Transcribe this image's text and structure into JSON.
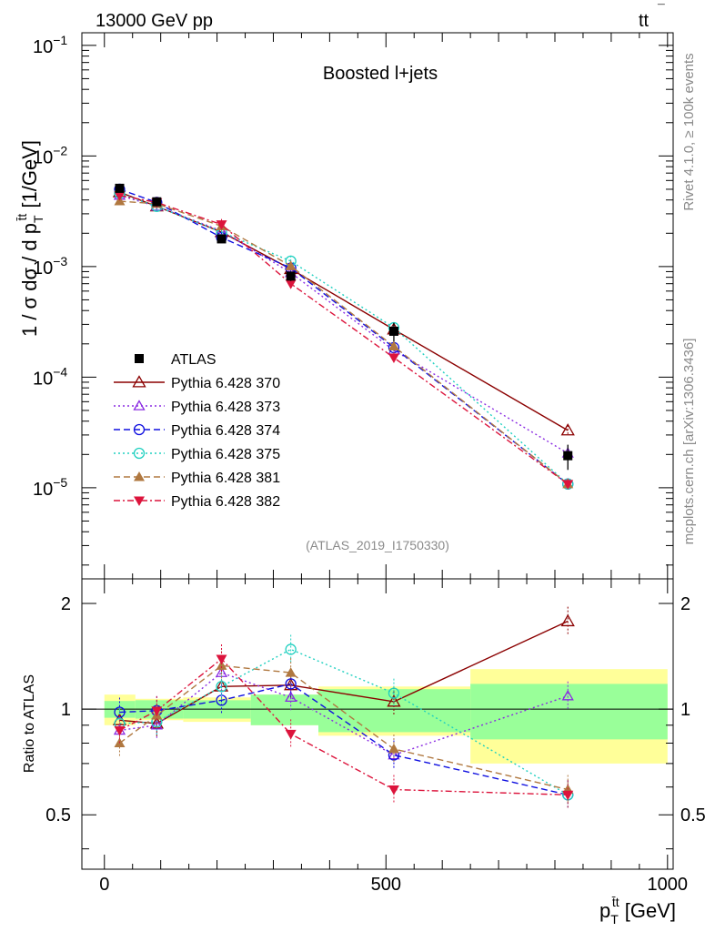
{
  "header": {
    "left": "13000 GeV pp",
    "right_main": "tt",
    "right_bar": "¯"
  },
  "main_panel": {
    "title": "Boosted l+jets",
    "ylabel_main": "1 / σ dσ / d p",
    "ylabel_sub": "T",
    "ylabel_sup": "t̄t",
    "ylabel_units": " [1/GeV]",
    "analysis_tag": "(ATLAS_2019_I1750330)",
    "ytick_base": "10",
    "ytick_exps": [
      "−1",
      "−2",
      "−3",
      "−4",
      "−5"
    ]
  },
  "ratio_panel": {
    "ylabel": "Ratio to ATLAS",
    "ytick_labels": [
      "2",
      "1",
      "0.5"
    ],
    "ytick_labels_right": [
      "2",
      "1",
      "0.5"
    ]
  },
  "xaxis": {
    "label_main": "p",
    "label_sub": "T",
    "label_sup": "t̄t",
    "label_units": " [GeV]",
    "tick_labels": [
      "0",
      "500",
      "1000"
    ]
  },
  "side_text": {
    "rivet": "Rivet 4.1.0, ≥ 100k events",
    "mcplots": "mcplots.cern.ch [arXiv:1306.3436]"
  },
  "colors": {
    "data": "#000000",
    "band_inner": "#99ff99",
    "band_outer": "#ffff99",
    "s370": "#8b0000",
    "s373": "#8a2be2",
    "s374": "#1010e0",
    "s375": "#20d0c0",
    "s381": "#b07840",
    "s382": "#dc143c"
  },
  "chart_data": {
    "type": "line",
    "title": "Boosted l+jets",
    "xlabel": "pT(ttbar) [GeV]",
    "ylabel": "1/sigma dsigma/dpT(ttbar) [1/GeV]",
    "ratio_ylabel": "Ratio to ATLAS",
    "xlim": [
      -40,
      1010
    ],
    "ylim": [
      1.5e-06,
      0.13
    ],
    "yscale": "log",
    "ratio_ylim": [
      0.35,
      2.35
    ],
    "x_bins": [
      [
        0,
        55
      ],
      [
        55,
        140
      ],
      [
        140,
        260
      ],
      [
        260,
        380
      ],
      [
        380,
        650
      ],
      [
        650,
        1000
      ]
    ],
    "x": [
      27,
      93,
      208,
      331,
      514,
      823
    ],
    "data": {
      "name": "ATLAS",
      "values": [
        0.0051,
        0.00385,
        0.00178,
        0.00082,
        0.00026,
        1.95e-05
      ],
      "errors": [
        0.0004,
        0.00025,
        0.00012,
        8e-05,
        5e-05,
        5e-06
      ]
    },
    "band_inner": [
      0.055,
      0.06,
      0.06,
      0.1,
      0.14,
      0.18
    ],
    "band_outer": [
      0.1,
      0.07,
      0.08,
      0.1,
      0.16,
      0.3
    ],
    "series": [
      {
        "key": "s370",
        "name": "Pythia 6.428 370",
        "marker": "triangle-open",
        "dash": "",
        "values": [
          0.0047,
          0.0035,
          0.00205,
          0.00095,
          0.00027,
          3.3e-05
        ],
        "ratio": [
          0.93,
          0.91,
          1.16,
          1.17,
          1.05,
          1.78
        ]
      },
      {
        "key": "s373",
        "name": "Pythia 6.428 373",
        "marker": "triangle-open-small",
        "dash": "2,3",
        "values": [
          0.0044,
          0.0035,
          0.0021,
          0.00088,
          0.000175,
          2.05e-05
        ],
        "ratio": [
          0.87,
          0.9,
          1.27,
          1.08,
          0.74,
          1.09
        ]
      },
      {
        "key": "s374",
        "name": "Pythia 6.428 374",
        "marker": "circle-open",
        "dash": "7,4",
        "values": [
          0.005,
          0.0038,
          0.00183,
          0.00097,
          0.000185,
          1.08e-05
        ],
        "ratio": [
          0.98,
          0.99,
          1.06,
          1.18,
          0.74,
          0.57
        ]
      },
      {
        "key": "s375",
        "name": "Pythia 6.428 375",
        "marker": "circle-open",
        "dash": "2,3",
        "values": [
          0.0046,
          0.0035,
          0.00205,
          0.00112,
          0.00028,
          1.08e-05
        ],
        "ratio": [
          0.91,
          0.92,
          1.16,
          1.48,
          1.11,
          0.57
        ]
      },
      {
        "key": "s381",
        "name": "Pythia 6.428 381",
        "marker": "triangle-filled",
        "dash": "7,4",
        "values": [
          0.0039,
          0.0037,
          0.00232,
          0.00101,
          0.00019,
          1.08e-05
        ],
        "ratio": [
          0.8,
          0.96,
          1.33,
          1.27,
          0.77,
          0.59
        ]
      },
      {
        "key": "s382",
        "name": "Pythia 6.428 382",
        "marker": "triangle-down-filled",
        "dash": "7,3,2,3",
        "values": [
          0.0044,
          0.0038,
          0.0024,
          0.0007,
          0.00015,
          1.08e-05
        ],
        "ratio": [
          0.87,
          0.99,
          1.39,
          0.85,
          0.59,
          0.57
        ]
      }
    ],
    "legend_position": "center-left"
  }
}
